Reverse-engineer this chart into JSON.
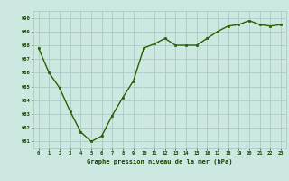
{
  "x": [
    0,
    1,
    2,
    3,
    4,
    5,
    6,
    7,
    8,
    9,
    10,
    11,
    12,
    13,
    14,
    15,
    16,
    17,
    18,
    19,
    20,
    21,
    22,
    23
  ],
  "y": [
    987.8,
    986.0,
    984.9,
    983.2,
    981.7,
    981.0,
    981.4,
    982.9,
    984.2,
    985.4,
    987.8,
    988.1,
    988.5,
    988.0,
    988.0,
    988.0,
    988.5,
    989.0,
    989.4,
    989.5,
    989.8,
    989.5,
    989.4,
    989.5
  ],
  "line_color": "#2a6000",
  "marker_color": "#2a6000",
  "bg_color": "#cce8e0",
  "grid_color": "#aaccc4",
  "xlabel": "Graphe pression niveau de la mer (hPa)",
  "xlabel_color": "#1a4000",
  "tick_color": "#1a4000",
  "ylim_min": 980.5,
  "ylim_max": 990.5,
  "xlim_min": -0.5,
  "xlim_max": 23.5,
  "yticks": [
    981,
    982,
    983,
    984,
    985,
    986,
    987,
    988,
    989,
    990
  ],
  "xticks": [
    0,
    1,
    2,
    3,
    4,
    5,
    6,
    7,
    8,
    9,
    10,
    11,
    12,
    13,
    14,
    15,
    16,
    17,
    18,
    19,
    20,
    21,
    22,
    23
  ]
}
